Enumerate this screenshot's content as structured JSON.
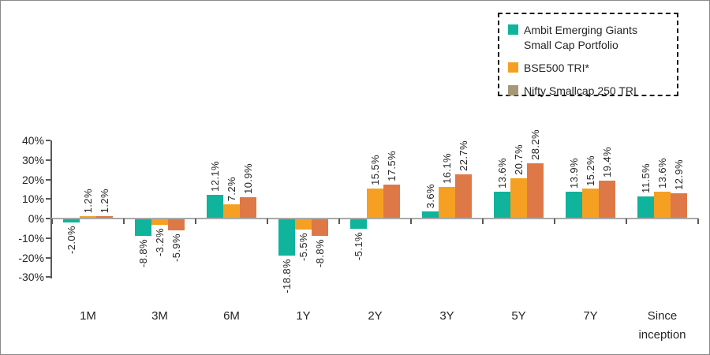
{
  "frame": {
    "background": "#ffffff",
    "border_color": "#8a8a8a"
  },
  "legend": {
    "position": "top-right",
    "border_style": "dashed",
    "items": [
      {
        "lines": [
          "Ambit Emerging Giants",
          "Small Cap Portfolio"
        ],
        "swatch_color": "#10B39B"
      },
      {
        "lines": [
          "BSE500 TRI*"
        ],
        "swatch_color": "#F5A023"
      },
      {
        "lines": [
          "Nifty Smallcap 250 TRI"
        ],
        "swatch_color": "#A49878"
      }
    ]
  },
  "chart_data": {
    "type": "bar",
    "title": "",
    "xlabel": "",
    "ylabel": "",
    "grid": false,
    "legend_position": "top-right",
    "categories": [
      "1M",
      "3M",
      "6M",
      "1Y",
      "2Y",
      "3Y",
      "5Y",
      "7Y",
      "Since inception"
    ],
    "series": [
      {
        "name": "Ambit Emerging Giants Small Cap Portfolio",
        "color": "#10B39B",
        "values": [
          -2.0,
          -8.8,
          12.1,
          -18.8,
          -5.1,
          3.6,
          13.6,
          13.9,
          11.5
        ],
        "labels": [
          "-2.0%",
          "-8.8%",
          "12.1%",
          "-18.8%",
          "-5.1%",
          "3.6%",
          "13.6%",
          "13.9%",
          "11.5%"
        ]
      },
      {
        "name": "BSE500 TRI*",
        "color": "#F5A023",
        "values": [
          1.2,
          -3.2,
          7.2,
          -5.5,
          15.5,
          16.1,
          20.7,
          15.2,
          13.6
        ],
        "labels": [
          "1.2%",
          "-3.2%",
          "7.2%",
          "-5.5%",
          "15.5%",
          "16.1%",
          "20.7%",
          "15.2%",
          "13.6%"
        ]
      },
      {
        "name": "Nifty Smallcap 250 TRI",
        "color": "#DF7847",
        "values": [
          1.2,
          -5.9,
          10.9,
          -8.8,
          17.5,
          22.7,
          28.2,
          19.4,
          12.9
        ],
        "labels": [
          "1.2%",
          "-5.9%",
          "10.9%",
          "-8.8%",
          "17.5%",
          "22.7%",
          "28.2%",
          "19.4%",
          "12.9%"
        ]
      }
    ],
    "y_axis": {
      "ylim": [
        -30,
        40
      ],
      "ticks": [
        40,
        30,
        20,
        10,
        0,
        -10,
        -20,
        -30
      ],
      "tick_labels": [
        "40%",
        "30%",
        "20%",
        "10%",
        "0%",
        "-10%",
        "-20%",
        "-30%"
      ]
    },
    "colors": {
      "axis_line": "#595959",
      "zero_line": "#a9a9a9",
      "label_text": "#262626"
    }
  }
}
